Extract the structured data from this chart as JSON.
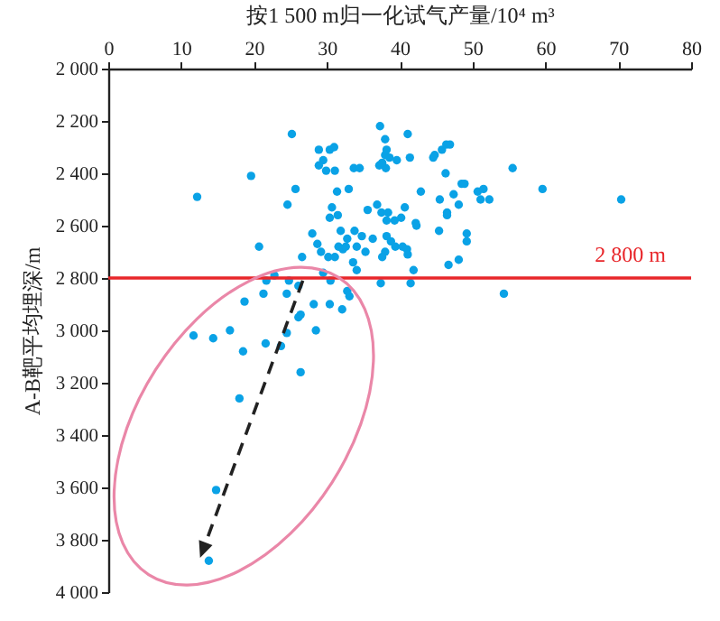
{
  "chart_data": {
    "type": "scatter",
    "xlabel": "按1 500 m归一化试气产量/10⁴ m³",
    "ylabel": "A-B靶平均埋深/m",
    "x": [
      12.2,
      19.6,
      25.2,
      25.7,
      24.6,
      20.7,
      28.0,
      26.6,
      28.9,
      30.4,
      31.0,
      29.5,
      28.9,
      29.9,
      31.1,
      33.7,
      34.5,
      31.4,
      33.0,
      30.7,
      30.4,
      31.5,
      31.9,
      32.8,
      28.7,
      29.2,
      30.2,
      31.1,
      31.6,
      32.2,
      32.6,
      33.8,
      34.8,
      34.1,
      35.3,
      33.6,
      34.1,
      35.6,
      36.9,
      36.3,
      37.3,
      38.0,
      38.2,
      38.0,
      37.2,
      38.1,
      39.6,
      38.6,
      41.1,
      41.4,
      37.5,
      38.2,
      39.3,
      40.2,
      40.7,
      38.2,
      38.8,
      39.4,
      40.4,
      41.0,
      38.0,
      41.9,
      37.4,
      41.5,
      44.8,
      45.8,
      46.4,
      46.9,
      44.6,
      46.3,
      42.9,
      48.5,
      48.9,
      47.4,
      45.5,
      48.1,
      46.5,
      46.5,
      50.7,
      51.5,
      51.1,
      52.3,
      55.5,
      59.6,
      70.4,
      45.4,
      49.2,
      49.2,
      48.1,
      46.7,
      54.3,
      42.2,
      42.3,
      38.4,
      37.6,
      41.1,
      37.6,
      11.7,
      14.4,
      16.7,
      18.7,
      18.5,
      21.3,
      21.7,
      22.8,
      24.5,
      24.8,
      26.1,
      26.4,
      26.1,
      28.2,
      30.4,
      32.1,
      28.5,
      24.5,
      23.7,
      21.6,
      26.4,
      18.0,
      29.5,
      30.5,
      32.8,
      33.1,
      14.8,
      13.8
    ],
    "values": [
      2490,
      2410,
      2250,
      2460,
      2520,
      2680,
      2630,
      2720,
      2310,
      2310,
      2300,
      2350,
      2370,
      2390,
      2390,
      2380,
      2380,
      2470,
      2460,
      2530,
      2570,
      2560,
      2620,
      2650,
      2670,
      2700,
      2720,
      2720,
      2680,
      2690,
      2680,
      2620,
      2640,
      2680,
      2700,
      2740,
      2770,
      2540,
      2520,
      2650,
      2220,
      2270,
      2310,
      2330,
      2370,
      2380,
      2350,
      2340,
      2250,
      2340,
      2550,
      2580,
      2580,
      2570,
      2530,
      2640,
      2660,
      2680,
      2680,
      2690,
      2700,
      2770,
      2820,
      2820,
      2330,
      2310,
      2290,
      2290,
      2340,
      2400,
      2470,
      2440,
      2440,
      2480,
      2500,
      2520,
      2550,
      2560,
      2470,
      2460,
      2500,
      2500,
      2380,
      2460,
      2500,
      2620,
      2630,
      2660,
      2730,
      2750,
      2860,
      2590,
      2600,
      2550,
      2720,
      2710,
      2360,
      3020,
      3030,
      3000,
      2890,
      3080,
      2860,
      2810,
      2790,
      2860,
      2810,
      2830,
      2940,
      2950,
      2900,
      2900,
      2920,
      3000,
      3010,
      3060,
      3050,
      3160,
      3260,
      2780,
      2810,
      2850,
      2870,
      3610,
      3880
    ],
    "color": "#0aa2e6",
    "marker": "circle",
    "xlim": [
      0,
      80
    ],
    "xticks": [
      0,
      10,
      20,
      30,
      40,
      50,
      60,
      70,
      80
    ],
    "ylim": [
      4000,
      2000
    ],
    "yticks": [
      {
        "value": 2000,
        "label": "2 000"
      },
      {
        "value": 2200,
        "label": "2 200"
      },
      {
        "value": 2400,
        "label": "2 400"
      },
      {
        "value": 2600,
        "label": "2 600"
      },
      {
        "value": 2800,
        "label": "2 800"
      },
      {
        "value": 3000,
        "label": "3 000"
      },
      {
        "value": 3200,
        "label": "3 200"
      },
      {
        "value": 3400,
        "label": "3 400"
      },
      {
        "value": 3600,
        "label": "3 600"
      },
      {
        "value": 3800,
        "label": "3 800"
      },
      {
        "value": 4000,
        "label": "4 000"
      }
    ],
    "ref_lines": [
      {
        "axis": "y",
        "value": 2800,
        "label": "2 800 m",
        "color": "#e8262a"
      }
    ],
    "grid": false
  }
}
